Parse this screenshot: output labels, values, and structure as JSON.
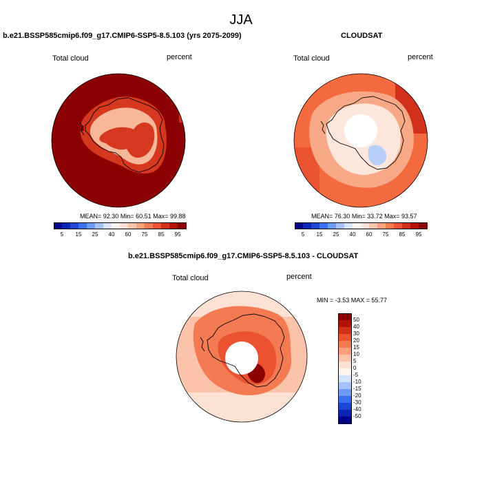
{
  "season": "JJA",
  "panels": [
    {
      "title": "b.e21.BSSP585cmip6.f09_g17.CMIP6-SSP5-8.5.103 (yrs 2075-2099)",
      "left_label": "Total cloud",
      "right_label": "percent",
      "stats": {
        "mean_label": "MEAN=",
        "mean": "92.30",
        "min_label": "Min=",
        "min": "60.51",
        "max_label": "Max=",
        "max": "99.88"
      },
      "colors": {
        "background": "#8b0000",
        "mid": "#d6381f",
        "light": "#f7b89a",
        "pale": "#fde7dc"
      }
    },
    {
      "title": "CLOUDSAT",
      "left_label": "Total cloud",
      "right_label": "percent",
      "stats": {
        "mean_label": "MEAN=",
        "mean": "76.30",
        "min_label": "Min=",
        "min": "33.72",
        "max_label": "Max=",
        "max": "93.57"
      },
      "colors": {
        "background": "#f26a3e",
        "mid": "#f7a987",
        "light": "#fde7dc",
        "pale": "#b8cffb"
      }
    }
  ],
  "diff_panel": {
    "title": "b.e21.BSSP585cmip6.f09_g17.CMIP6-SSP5-8.5.103 - CLOUDSAT",
    "left_label": "Total cloud",
    "right_label": "percent",
    "minmax_text": "MIN =  -3.53 MAX =  55.77"
  },
  "chart_data": {
    "type": "heatmap",
    "projection": "south polar stereographic",
    "variable": "Total cloud",
    "units": "percent",
    "abs_colorbar": {
      "levels": [
        5,
        10,
        15,
        20,
        25,
        30,
        40,
        50,
        60,
        65,
        75,
        80,
        85,
        90,
        95
      ],
      "tick_labels": [
        "5",
        "15",
        "25",
        "40",
        "60",
        "75",
        "85",
        "95"
      ],
      "colors": [
        "#00008b",
        "#0b24b3",
        "#1c46d6",
        "#3b6ff0",
        "#6d9bf7",
        "#a6c4fb",
        "#d4e3fd",
        "#fff6f0",
        "#fde2d3",
        "#fbc4aa",
        "#f8a07c",
        "#f47a52",
        "#ea5230",
        "#d2301a",
        "#b01306",
        "#8b0000"
      ]
    },
    "diff_colorbar": {
      "tick_labels": [
        "50",
        "40",
        "30",
        "20",
        "15",
        "10",
        "5",
        "0",
        "-5",
        "-10",
        "-15",
        "-20",
        "-30",
        "-40",
        "-50"
      ],
      "colors": [
        "#8b0000",
        "#b01306",
        "#d2301a",
        "#ea5230",
        "#f47a52",
        "#f8a07c",
        "#fbc4aa",
        "#fde2d3",
        "#fff6f0",
        "#d4e3fd",
        "#a6c4fb",
        "#6d9bf7",
        "#3b6ff0",
        "#1c46d6",
        "#0b24b3",
        "#00008b"
      ]
    }
  }
}
